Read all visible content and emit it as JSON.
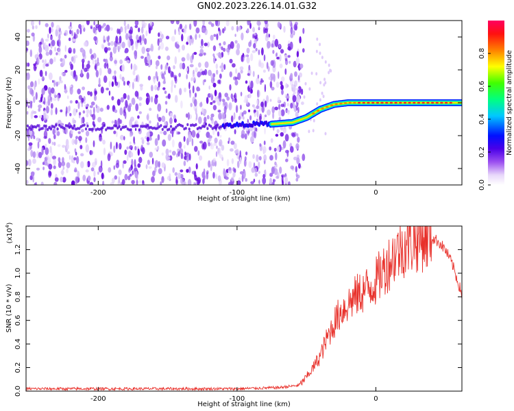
{
  "title": "GN02.2023.226.14.01.G32",
  "chart_data": [
    {
      "type": "heatmap",
      "xlabel": "Height of straight line (km)",
      "ylabel": "Frequency (Hz)",
      "xlim": [
        -252,
        62
      ],
      "ylim": [
        -50,
        50
      ],
      "xticks": [
        -200,
        -100,
        0
      ],
      "yticks": [
        -40,
        -20,
        0,
        20,
        40
      ],
      "xtick_labels": [
        "-200",
        "-100",
        "0"
      ],
      "ytick_labels": [
        "-40",
        "-20",
        "0",
        "20",
        "40"
      ],
      "colorbar": {
        "label": "Normalized spectral amplitude",
        "range": [
          0,
          1
        ],
        "ticks": [
          "0.0",
          "0.2",
          "0.4",
          "0.6",
          "0.8"
        ],
        "colormap": [
          "#ffffff",
          "#d9c2f5",
          "#7a1fe0",
          "#0000ff",
          "#00c8ff",
          "#00ff40",
          "#ffff00",
          "#ff8000",
          "#ff0000",
          "#ff0060"
        ]
      },
      "tone_track": {
        "x": [
          -252,
          -200,
          -150,
          -110,
          -90,
          -75,
          -60,
          -50,
          -40,
          -30,
          -20,
          0,
          30,
          62
        ],
        "y": [
          -15,
          -15,
          -15,
          -14,
          -13,
          -13,
          -12,
          -9,
          -4,
          -1,
          0,
          0,
          0,
          0
        ]
      },
      "noise_region_x": [
        -252,
        -52
      ]
    },
    {
      "type": "line",
      "xlabel": "Height of straight line (km)",
      "ylabel": "SNR (10 * v/v)",
      "yscale_label": "(x10",
      "yscale_exp": "4",
      "yscale_close": ")",
      "xlim": [
        -252,
        62
      ],
      "ylim": [
        0,
        1.4
      ],
      "xticks": [
        -200,
        -100,
        0
      ],
      "yticks": [
        0.0,
        0.2,
        0.4,
        0.6,
        0.8,
        1.0,
        1.2
      ],
      "xtick_labels": [
        "-200",
        "-100",
        "0"
      ],
      "ytick_labels": [
        "0.0",
        "0.2",
        "0.4",
        "0.6",
        "0.8",
        "1.0",
        "1.2"
      ],
      "series": [
        {
          "color": "#e8302a",
          "x": [
            -252,
            -200,
            -150,
            -100,
            -70,
            -55,
            -50,
            -45,
            -40,
            -35,
            -30,
            -25,
            -20,
            -15,
            -10,
            -5,
            0,
            5,
            10,
            15,
            20,
            25,
            30,
            35,
            40,
            45,
            50,
            55,
            62
          ],
          "y": [
            0.02,
            0.02,
            0.02,
            0.02,
            0.03,
            0.05,
            0.12,
            0.2,
            0.3,
            0.45,
            0.58,
            0.68,
            0.74,
            0.8,
            0.84,
            0.88,
            0.93,
            1.02,
            1.1,
            1.18,
            1.23,
            1.26,
            1.29,
            1.3,
            1.3,
            1.27,
            1.2,
            1.08,
            0.82
          ]
        }
      ]
    }
  ]
}
